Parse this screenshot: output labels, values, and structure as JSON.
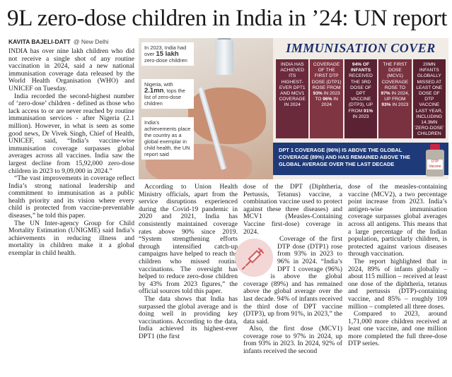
{
  "article": {
    "headline": "9L zero-dose children in India in ’24: UN report",
    "byline_name": "KAVITA BAJELI-DATT",
    "byline_place": "@ New Delhi"
  },
  "graphic": {
    "notes": [
      {
        "pre": "In 2023, India had over ",
        "bold": "15 lakh",
        "post": " zero-dose children"
      },
      {
        "pre": "Nigeria, with ",
        "bold": "2.1mn",
        "post": ", tops the list of zero-dose children"
      },
      {
        "pre": "India’s achievements place the country as a global exemplar in child health, the UN report said",
        "bold": "",
        "post": ""
      }
    ],
    "panel_title": "IMMUNISATION COVER",
    "boxes": [
      {
        "pre": "INDIA HAS ACHIEVED ITS HIGHEST-EVER DPT1 AND MCV1 COVERAGE IN 2024",
        "b1": "",
        "mid": "",
        "b2": "",
        "post": ""
      },
      {
        "pre": "Coverage of the first DTP dose (DTP1) rose from ",
        "b1": "93%",
        "mid": " in 2023 to ",
        "b2": "96%",
        "post": " in 2024"
      },
      {
        "pre": "",
        "b1": "94% of infants",
        "mid": " received the 3rd dose of DPT vaccine (DTP3), up from ",
        "b2": "91%",
        "post": " in 2023"
      },
      {
        "pre": "The first dose (MCV1) coverage rose to ",
        "b1": "97%",
        "mid": " in 2024, up from ",
        "b2": "93%",
        "post": " in 2023"
      },
      {
        "pre": "20mn infants globally missed at least one dose of DTP vaccine last year, including 14.3mn ‘zero-dose’ children",
        "b1": "",
        "mid": "",
        "b2": "",
        "post": ""
      }
    ],
    "footer": "DPT 1 coverage (96%) is above the global coverage (89%) and has remained above the global average over the last decade",
    "bottle_label": "DTP Vaccine"
  },
  "body": {
    "col1": [
      "INDIA has over nine lakh children who did not receive a single shot of any routine vaccination in 2024, said a new national immunisation coverage data released by the World Health Organisation (WHO) and UNICEF on Tuesday.",
      "India recorded the second-highest number of ‘zero-dose’ children - defined as those who lack access to or are never reached by routine immunisation services - after Nigeria (2.1 million). However, in what is seen as some good news, Dr Vivek Singh, Chief of Health, UNICEF, said, “India’s vaccine-wise immunisation coverage surpasses global averages across all vaccines. India saw the largest decline from 15,92,000 zero-dose children in 2023 to 9,09,000 in 2024.”",
      "“The vast improvements in coverage reflect India’s strong national leadership and commitment to immunisation as a public health priority and its vision where every child is protected from vaccine-preventable diseases,” he told this paper.",
      "The UN Inter-agency Group for Child Mortality Estimation (UNIGME) said India’s achievements in reducing illness and mortality in children make it a global exemplar in child health."
    ],
    "col2": [
      "According to Union Health Ministry officials, apart from the service disruptions experienced during the Covid-19 pandemic in 2020 and 2021, India has consistently maintained coverage rates above 90% since 2019. “System strengthening efforts through intensified catch-up campaigns have helped to reach the children who missed routine vaccinations. The oversight has helped to reduce zero-dose children by 43% from 2023 figures,” the official sources told this paper.",
      "The data shows that India has surpassed the global average and is doing well in providing key vaccinations. According to the data, India achieved its highest-ever DPT1 (the first"
    ],
    "col3": [
      "dose of the DPT (Diphtheria, Pertussis, Tetanus) vaccine, a combination vaccine used to protect against these three diseases) and MCV1 (Measles-Containing Vaccine first-dose) coverage in 2024.",
      "Coverage of the first DTP dose (DTP1) rose from 93% in 2023 to 96% in 2024. “India’s DPT 1 coverage (96%) is above the global coverage (89%) and has remained above the global average over the last decade. 94% of infants received the third dose of DPT vaccine (DTP3), up from 91%, in 2023,” the data said.",
      "Also, the first dose (MCV1) coverage rose to 97% in 2024, up from 93% in 2023. In 2024, 92% of infants received the second"
    ],
    "col4": [
      "dose of the measles-containing vaccine (MCV2), a two percentage point increase from 2023. India’s antigen-wise immunisation coverage surpasses global averages across all antigens. This means that a large percentage of the Indian population, particularly children, is protected against various diseases through vaccination.",
      "The report highlighted that in 2024, 89% of infants globally – about 115 million – received at least one dose of the diphtheria, tetanus and pertussis (DTP)-containing vaccine, and 85% – roughly 109 million – completed all three doses.",
      "Compared to 2023, around 1,71,000 more children received at least one vaccine, and one million more completed the full three-dose DTP series."
    ]
  },
  "colors": {
    "panel_title": "#1b2f6e",
    "footer_bg": "#1f3a78",
    "box_bg": "#6b2a3c",
    "icon_circle": "#f3d6d6"
  },
  "icons": [
    "syringe-icon"
  ]
}
